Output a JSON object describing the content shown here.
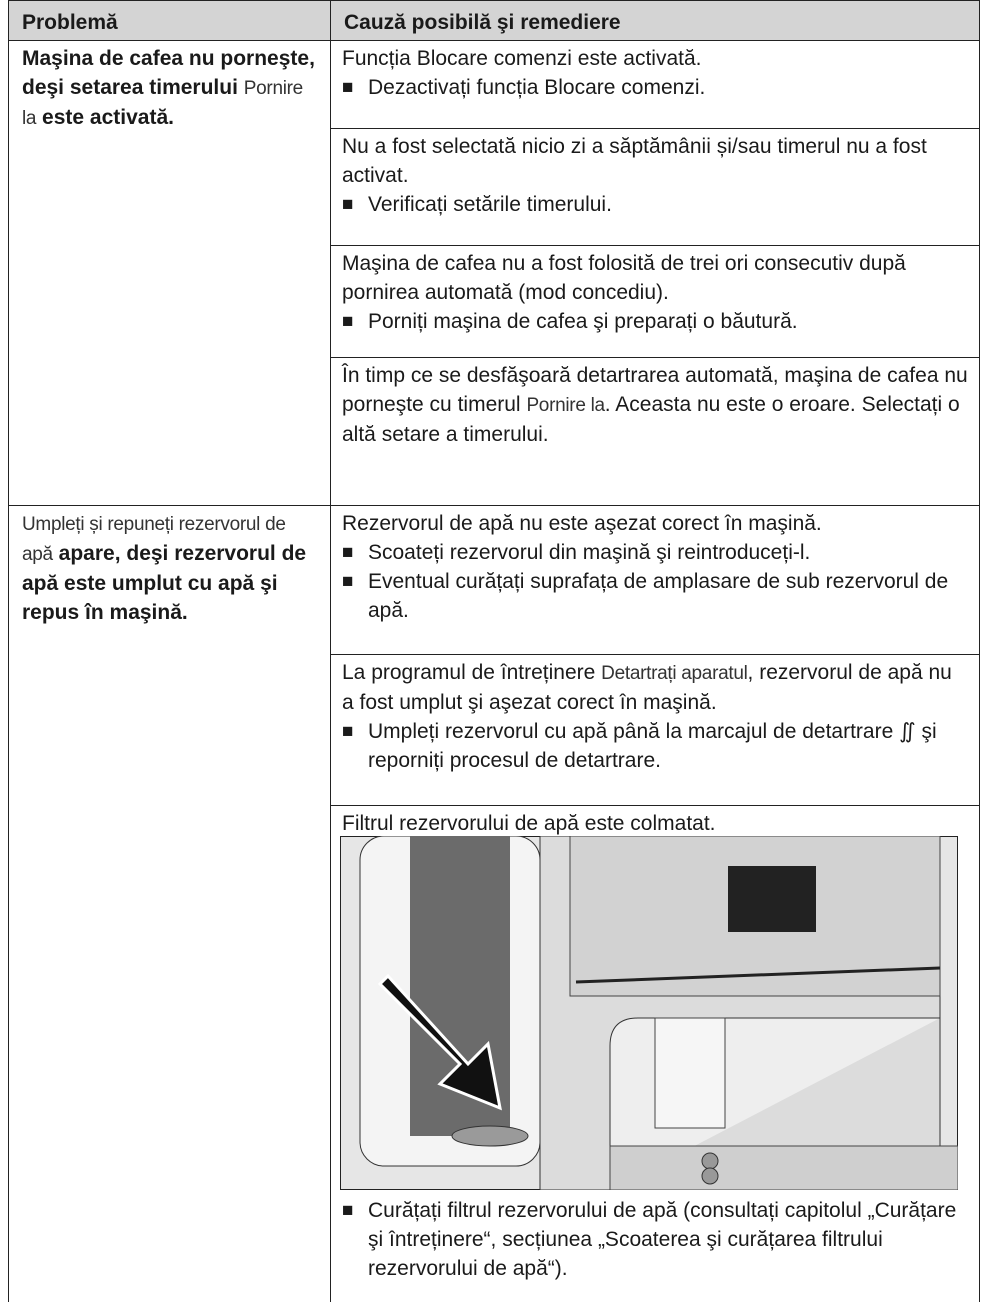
{
  "table": {
    "header": [
      "Problemă",
      "Cauză posibilă şi remediere"
    ],
    "rows": [
      {
        "problem": [
          "Maşina de cafea nu porneşte, deşi setarea timerului",
          "Pornire la",
          "este activată."
        ],
        "causes": [
          {
            "text": [
              "Funcția Blocare comenzi este activată."
            ],
            "remedies": [
              "Dezactivați funcția Blocare comenzi."
            ]
          },
          {
            "text": [
              "Nu a fost selectată nicio zi a săptămânii și/sau timerul nu a fost activat."
            ],
            "remedies": [
              "Verificați setările timerului."
            ]
          },
          {
            "text": [
              "Maşina de cafea nu a fost folosită de trei ori consecutiv după pornirea automată (mod concediu)."
            ],
            "remedies": [
              "Porniți maşina de cafea şi preparați o băutură."
            ]
          },
          {
            "text": [
              "În timp ce se desfăşoară detartrarea automată, maşina de cafea nu porneşte cu timerul",
              "Pornire la",
              ". Aceasta nu este o eroare. Selectați o altă setare a timerului."
            ],
            "remedies": []
          }
        ]
      },
      {
        "problem": [
          "Umpleți și repuneți rezervorul de apă",
          "apare, deşi rezervorul de apă este umplut cu apă şi repus în maşină."
        ],
        "causes": [
          {
            "text": [
              "Rezervorul de apă nu este aşezat corect în maşină."
            ],
            "remedies": [
              "Scoateți rezervorul din maşină şi reintroduceți-l.",
              "Eventual curățați suprafața de amplasare de sub rezervorul de apă."
            ]
          },
          {
            "text": [
              "La programul de întreținere",
              "Detartrați aparatul",
              ", rezervorul de apă nu a fost umplut şi aşezat corect în maşină."
            ],
            "remedies": [
              "Umpleți rezervorul cu apă până la marcajul de detartrare ∬ şi reporniți procesul de detartrare."
            ]
          },
          {
            "text": [
              "Filtrul rezervorului de apă este colmatat."
            ],
            "remedies": [
              "Curățați filtrul rezervorului de apă (consultați capitolul „Curățare şi întreținere“, secțiunea „Scoaterea şi curățarea filtrului rezervorului de apă“)."
            ]
          }
        ]
      }
    ]
  }
}
